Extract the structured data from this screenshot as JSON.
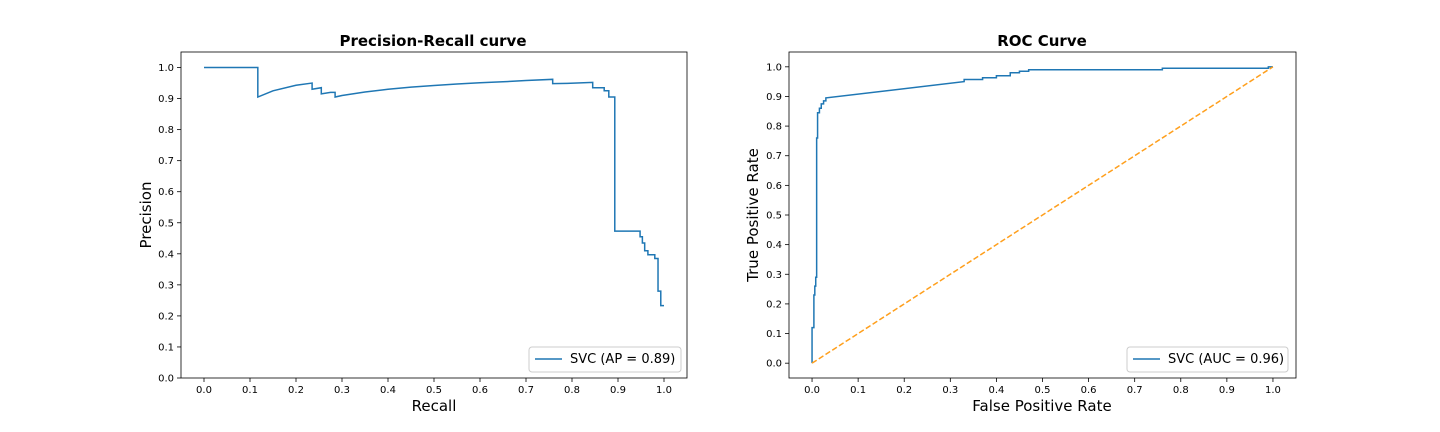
{
  "colors": {
    "series": "#1f77b4",
    "chance": "#ff9f1c",
    "axes": "#000000",
    "legend_border": "#cccccc"
  },
  "chart_data": [
    {
      "type": "line",
      "title": "Precision-Recall curve",
      "xlabel": "Recall",
      "ylabel": "Precision",
      "xlim": [
        -0.05,
        1.05
      ],
      "ylim": [
        0.0,
        1.05
      ],
      "xticks": [
        0.0,
        0.1,
        0.2,
        0.3,
        0.4,
        0.5,
        0.6,
        0.7,
        0.8,
        0.9,
        1.0
      ],
      "xtick_labels": [
        "0.0",
        "0.1",
        "0.2",
        "0.3",
        "0.4",
        "0.5",
        "0.6",
        "0.7",
        "0.8",
        "0.9",
        "1.0"
      ],
      "yticks": [
        0.0,
        0.1,
        0.2,
        0.3,
        0.4,
        0.5,
        0.6,
        0.7,
        0.8,
        0.9,
        1.0
      ],
      "ytick_labels": [
        "0.0",
        "0.1",
        "0.2",
        "0.3",
        "0.4",
        "0.5",
        "0.6",
        "0.7",
        "0.8",
        "0.9",
        "1.0"
      ],
      "grid": false,
      "legend_position": "lower-right",
      "series": [
        {
          "name": "SVC (AP = 0.89)",
          "style": "step",
          "x": [
            0.0,
            0.117,
            0.117,
            0.15,
            0.2,
            0.235,
            0.235,
            0.255,
            0.255,
            0.275,
            0.285,
            0.285,
            0.3,
            0.35,
            0.4,
            0.45,
            0.5,
            0.55,
            0.6,
            0.65,
            0.7,
            0.758,
            0.758,
            0.79,
            0.845,
            0.845,
            0.87,
            0.87,
            0.88,
            0.88,
            0.893,
            0.893,
            0.948,
            0.948,
            0.953,
            0.953,
            0.958,
            0.958,
            0.965,
            0.965,
            0.98,
            0.98,
            0.987,
            0.987,
            0.993,
            0.993,
            1.0
          ],
          "y": [
            1.0,
            1.0,
            0.905,
            0.925,
            0.943,
            0.95,
            0.93,
            0.935,
            0.915,
            0.92,
            0.92,
            0.905,
            0.91,
            0.921,
            0.93,
            0.937,
            0.942,
            0.947,
            0.951,
            0.954,
            0.958,
            0.962,
            0.948,
            0.949,
            0.952,
            0.935,
            0.935,
            0.925,
            0.925,
            0.905,
            0.905,
            0.473,
            0.473,
            0.455,
            0.455,
            0.435,
            0.435,
            0.41,
            0.41,
            0.397,
            0.397,
            0.385,
            0.385,
            0.28,
            0.28,
            0.233,
            0.233
          ]
        }
      ]
    },
    {
      "type": "line",
      "title": "ROC Curve",
      "xlabel": "False Positive Rate",
      "ylabel": "True Positive Rate",
      "xlim": [
        -0.05,
        1.05
      ],
      "ylim": [
        -0.05,
        1.05
      ],
      "xticks": [
        0.0,
        0.1,
        0.2,
        0.3,
        0.4,
        0.5,
        0.6,
        0.7,
        0.8,
        0.9,
        1.0
      ],
      "xtick_labels": [
        "0.0",
        "0.1",
        "0.2",
        "0.3",
        "0.4",
        "0.5",
        "0.6",
        "0.7",
        "0.8",
        "0.9",
        "1.0"
      ],
      "yticks": [
        0.0,
        0.1,
        0.2,
        0.3,
        0.4,
        0.5,
        0.6,
        0.7,
        0.8,
        0.9,
        1.0
      ],
      "ytick_labels": [
        "0.0",
        "0.1",
        "0.2",
        "0.3",
        "0.4",
        "0.5",
        "0.6",
        "0.7",
        "0.8",
        "0.9",
        "1.0"
      ],
      "grid": false,
      "legend_position": "lower-right",
      "series": [
        {
          "name": "SVC (AUC = 0.96)",
          "style": "line",
          "x": [
            0.0,
            0.0,
            0.004,
            0.004,
            0.006,
            0.006,
            0.008,
            0.008,
            0.01,
            0.01,
            0.012,
            0.012,
            0.016,
            0.016,
            0.02,
            0.02,
            0.025,
            0.025,
            0.03,
            0.03,
            0.33,
            0.33,
            0.37,
            0.37,
            0.4,
            0.4,
            0.43,
            0.43,
            0.45,
            0.45,
            0.47,
            0.47,
            0.76,
            0.76,
            0.99,
            0.99,
            1.0
          ],
          "y": [
            0.0,
            0.12,
            0.12,
            0.23,
            0.23,
            0.26,
            0.26,
            0.29,
            0.29,
            0.76,
            0.76,
            0.845,
            0.845,
            0.86,
            0.86,
            0.875,
            0.875,
            0.885,
            0.885,
            0.895,
            0.95,
            0.957,
            0.957,
            0.963,
            0.963,
            0.97,
            0.97,
            0.98,
            0.98,
            0.985,
            0.985,
            0.99,
            0.99,
            0.995,
            0.995,
            1.0,
            1.0
          ]
        },
        {
          "name": "",
          "style": "dashed",
          "x": [
            0.0,
            1.0
          ],
          "y": [
            0.0,
            1.0
          ]
        }
      ]
    }
  ]
}
